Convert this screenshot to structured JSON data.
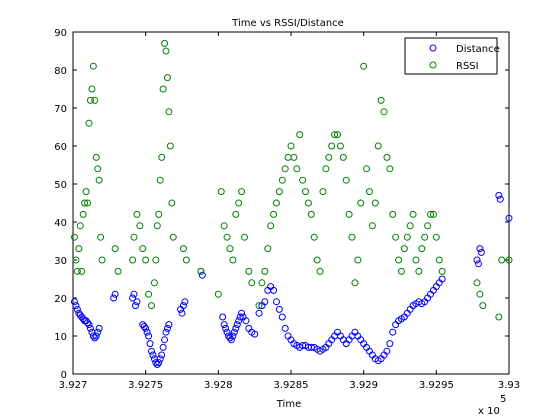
{
  "chart_data": {
    "type": "scatter",
    "title": "Time vs RSSI/Distance",
    "xlabel": "Time",
    "ylabel": "",
    "x_exponent_label": "x 10",
    "x_exponent_power": "5",
    "xlim": [
      3.927,
      3.93
    ],
    "ylim": [
      0,
      90
    ],
    "x_ticks": [
      3.927,
      3.9275,
      3.928,
      3.9285,
      3.929,
      3.9295,
      3.93
    ],
    "x_tick_labels": [
      "3.927",
      "3.9275",
      "3.928",
      "3.9285",
      "3.929",
      "3.9295",
      "3.93"
    ],
    "y_ticks": [
      0,
      10,
      20,
      30,
      40,
      50,
      60,
      70,
      80,
      90
    ],
    "y_tick_labels": [
      "0",
      "10",
      "20",
      "30",
      "40",
      "50",
      "60",
      "70",
      "80",
      "90"
    ],
    "grid": false,
    "legend": {
      "position": "top-right",
      "entries": [
        "Distance",
        "RSSI"
      ]
    },
    "series": [
      {
        "name": "Distance",
        "color": "#0000ff",
        "marker": "circle-open",
        "points": [
          [
            3.92701,
            19
          ],
          [
            3.92702,
            18
          ],
          [
            3.92703,
            17
          ],
          [
            3.92704,
            16
          ],
          [
            3.92705,
            15.5
          ],
          [
            3.92706,
            15
          ],
          [
            3.92707,
            14.5
          ],
          [
            3.92708,
            14
          ],
          [
            3.92709,
            14
          ],
          [
            3.9271,
            13.5
          ],
          [
            3.92711,
            13
          ],
          [
            3.92712,
            12
          ],
          [
            3.92713,
            11
          ],
          [
            3.92714,
            10
          ],
          [
            3.92715,
            9.5
          ],
          [
            3.92716,
            10
          ],
          [
            3.92717,
            11
          ],
          [
            3.92718,
            12
          ],
          [
            3.92728,
            20
          ],
          [
            3.92729,
            21
          ],
          [
            3.92741,
            20
          ],
          [
            3.92742,
            21
          ],
          [
            3.92743,
            18
          ],
          [
            3.92744,
            19
          ],
          [
            3.92748,
            13
          ],
          [
            3.92749,
            12.5
          ],
          [
            3.9275,
            12
          ],
          [
            3.92751,
            11
          ],
          [
            3.92752,
            10
          ],
          [
            3.92753,
            8
          ],
          [
            3.92754,
            6
          ],
          [
            3.92755,
            5
          ],
          [
            3.92756,
            4
          ],
          [
            3.92757,
            3
          ],
          [
            3.92758,
            2.5
          ],
          [
            3.92759,
            3
          ],
          [
            3.9276,
            4
          ],
          [
            3.92761,
            5
          ],
          [
            3.92762,
            7
          ],
          [
            3.92763,
            9
          ],
          [
            3.92764,
            11
          ],
          [
            3.92765,
            12
          ],
          [
            3.92766,
            13
          ],
          [
            3.92774,
            17
          ],
          [
            3.92775,
            16
          ],
          [
            3.92776,
            18
          ],
          [
            3.92777,
            19
          ],
          [
            3.92788,
            27
          ],
          [
            3.92789,
            26
          ],
          [
            3.92803,
            15
          ],
          [
            3.92804,
            13
          ],
          [
            3.92805,
            12
          ],
          [
            3.92806,
            11
          ],
          [
            3.92807,
            10
          ],
          [
            3.92808,
            9.5
          ],
          [
            3.92809,
            9
          ],
          [
            3.9281,
            10
          ],
          [
            3.92811,
            11
          ],
          [
            3.92812,
            12
          ],
          [
            3.92813,
            13
          ],
          [
            3.92814,
            14
          ],
          [
            3.92815,
            15
          ],
          [
            3.92816,
            16
          ],
          [
            3.92817,
            15
          ],
          [
            3.92819,
            14
          ],
          [
            3.92821,
            12
          ],
          [
            3.92823,
            11
          ],
          [
            3.92825,
            10.5
          ],
          [
            3.92828,
            16
          ],
          [
            3.9283,
            18
          ],
          [
            3.92832,
            19
          ],
          [
            3.92834,
            22
          ],
          [
            3.92836,
            23
          ],
          [
            3.92838,
            22
          ],
          [
            3.9284,
            19
          ],
          [
            3.92842,
            17
          ],
          [
            3.92844,
            15
          ],
          [
            3.92846,
            12
          ],
          [
            3.92848,
            10
          ],
          [
            3.9285,
            9
          ],
          [
            3.92852,
            8
          ],
          [
            3.92854,
            7.5
          ],
          [
            3.92856,
            7
          ],
          [
            3.92858,
            7.5
          ],
          [
            3.9286,
            7.5
          ],
          [
            3.92862,
            7
          ],
          [
            3.92864,
            7
          ],
          [
            3.92866,
            7
          ],
          [
            3.92868,
            6.5
          ],
          [
            3.9287,
            6
          ],
          [
            3.92872,
            6.5
          ],
          [
            3.92874,
            7
          ],
          [
            3.92876,
            8
          ],
          [
            3.92878,
            9
          ],
          [
            3.9288,
            10
          ],
          [
            3.92882,
            11
          ],
          [
            3.92884,
            10
          ],
          [
            3.92886,
            9
          ],
          [
            3.92888,
            8
          ],
          [
            3.9289,
            9
          ],
          [
            3.92892,
            10
          ],
          [
            3.92894,
            11
          ],
          [
            3.92896,
            10
          ],
          [
            3.92898,
            9
          ],
          [
            3.929,
            8
          ],
          [
            3.92902,
            7
          ],
          [
            3.92904,
            6
          ],
          [
            3.92906,
            5
          ],
          [
            3.92908,
            4
          ],
          [
            3.9291,
            3.5
          ],
          [
            3.92912,
            4
          ],
          [
            3.92914,
            5
          ],
          [
            3.92916,
            6
          ],
          [
            3.92918,
            8
          ],
          [
            3.9292,
            11
          ],
          [
            3.92922,
            13
          ],
          [
            3.92924,
            14
          ],
          [
            3.92926,
            14.5
          ],
          [
            3.92928,
            15
          ],
          [
            3.9293,
            16
          ],
          [
            3.92932,
            17
          ],
          [
            3.92934,
            18
          ],
          [
            3.92936,
            18.5
          ],
          [
            3.92938,
            19
          ],
          [
            3.9294,
            18.5
          ],
          [
            3.92942,
            19
          ],
          [
            3.92944,
            20
          ],
          [
            3.92946,
            21
          ],
          [
            3.92948,
            22
          ],
          [
            3.9295,
            23
          ],
          [
            3.92952,
            24
          ],
          [
            3.92954,
            25
          ],
          [
            3.92978,
            30
          ],
          [
            3.92979,
            29
          ],
          [
            3.9298,
            33
          ],
          [
            3.92981,
            32
          ],
          [
            3.92993,
            47
          ],
          [
            3.92994,
            46
          ],
          [
            3.93,
            41
          ]
        ]
      },
      {
        "name": "RSSI",
        "color": "#008000",
        "marker": "circle-open",
        "points": [
          [
            3.92701,
            36
          ],
          [
            3.92702,
            30
          ],
          [
            3.92703,
            27
          ],
          [
            3.92704,
            33
          ],
          [
            3.92705,
            39
          ],
          [
            3.92706,
            27
          ],
          [
            3.92707,
            42
          ],
          [
            3.92708,
            45
          ],
          [
            3.92709,
            48
          ],
          [
            3.9271,
            45
          ],
          [
            3.92711,
            66
          ],
          [
            3.92712,
            72
          ],
          [
            3.92713,
            75
          ],
          [
            3.92714,
            81
          ],
          [
            3.92715,
            72
          ],
          [
            3.92716,
            57
          ],
          [
            3.92717,
            54
          ],
          [
            3.92718,
            51
          ],
          [
            3.92719,
            36
          ],
          [
            3.9272,
            30
          ],
          [
            3.92729,
            33
          ],
          [
            3.92731,
            27
          ],
          [
            3.92741,
            30
          ],
          [
            3.92742,
            36
          ],
          [
            3.92744,
            42
          ],
          [
            3.92746,
            39
          ],
          [
            3.92748,
            33
          ],
          [
            3.9275,
            30
          ],
          [
            3.92752,
            21
          ],
          [
            3.92754,
            18
          ],
          [
            3.92756,
            24
          ],
          [
            3.92757,
            30
          ],
          [
            3.92758,
            39
          ],
          [
            3.92759,
            42
          ],
          [
            3.9276,
            51
          ],
          [
            3.92761,
            57
          ],
          [
            3.92762,
            75
          ],
          [
            3.92763,
            87
          ],
          [
            3.92764,
            85
          ],
          [
            3.92765,
            78
          ],
          [
            3.92766,
            69
          ],
          [
            3.92767,
            60
          ],
          [
            3.92768,
            45
          ],
          [
            3.92769,
            36
          ],
          [
            3.92776,
            33
          ],
          [
            3.92778,
            30
          ],
          [
            3.92788,
            27
          ],
          [
            3.928,
            21
          ],
          [
            3.92802,
            48
          ],
          [
            3.92804,
            39
          ],
          [
            3.92806,
            36
          ],
          [
            3.92808,
            33
          ],
          [
            3.9281,
            30
          ],
          [
            3.92812,
            42
          ],
          [
            3.92814,
            45
          ],
          [
            3.92816,
            48
          ],
          [
            3.92818,
            36
          ],
          [
            3.92821,
            27
          ],
          [
            3.92823,
            24
          ],
          [
            3.92828,
            18
          ],
          [
            3.9283,
            24
          ],
          [
            3.92832,
            27
          ],
          [
            3.92834,
            33
          ],
          [
            3.92836,
            39
          ],
          [
            3.92838,
            42
          ],
          [
            3.9284,
            45
          ],
          [
            3.92842,
            48
          ],
          [
            3.92844,
            51
          ],
          [
            3.92846,
            54
          ],
          [
            3.92848,
            57
          ],
          [
            3.9285,
            60
          ],
          [
            3.92852,
            57
          ],
          [
            3.92854,
            54
          ],
          [
            3.92856,
            63
          ],
          [
            3.92858,
            51
          ],
          [
            3.9286,
            48
          ],
          [
            3.92862,
            45
          ],
          [
            3.92864,
            42
          ],
          [
            3.92866,
            36
          ],
          [
            3.92868,
            30
          ],
          [
            3.9287,
            27
          ],
          [
            3.92872,
            48
          ],
          [
            3.92874,
            54
          ],
          [
            3.92876,
            57
          ],
          [
            3.92878,
            60
          ],
          [
            3.9288,
            63
          ],
          [
            3.92882,
            63
          ],
          [
            3.92884,
            60
          ],
          [
            3.92886,
            57
          ],
          [
            3.92888,
            51
          ],
          [
            3.9289,
            42
          ],
          [
            3.92892,
            36
          ],
          [
            3.92894,
            24
          ],
          [
            3.92896,
            30
          ],
          [
            3.92898,
            45
          ],
          [
            3.929,
            81
          ],
          [
            3.92902,
            54
          ],
          [
            3.92904,
            48
          ],
          [
            3.92906,
            39
          ],
          [
            3.92908,
            45
          ],
          [
            3.9291,
            60
          ],
          [
            3.92912,
            72
          ],
          [
            3.92914,
            69
          ],
          [
            3.92916,
            57
          ],
          [
            3.92918,
            54
          ],
          [
            3.9292,
            42
          ],
          [
            3.92922,
            36
          ],
          [
            3.92924,
            30
          ],
          [
            3.92926,
            27
          ],
          [
            3.92928,
            33
          ],
          [
            3.9293,
            36
          ],
          [
            3.92932,
            39
          ],
          [
            3.92934,
            42
          ],
          [
            3.92936,
            30
          ],
          [
            3.92938,
            27
          ],
          [
            3.9294,
            33
          ],
          [
            3.92942,
            36
          ],
          [
            3.92944,
            39
          ],
          [
            3.92946,
            42
          ],
          [
            3.92948,
            42
          ],
          [
            3.9295,
            36
          ],
          [
            3.92952,
            30
          ],
          [
            3.92954,
            27
          ],
          [
            3.92978,
            24
          ],
          [
            3.9298,
            21
          ],
          [
            3.92982,
            18
          ],
          [
            3.92993,
            15
          ],
          [
            3.92995,
            30
          ],
          [
            3.93,
            30
          ]
        ]
      }
    ]
  }
}
